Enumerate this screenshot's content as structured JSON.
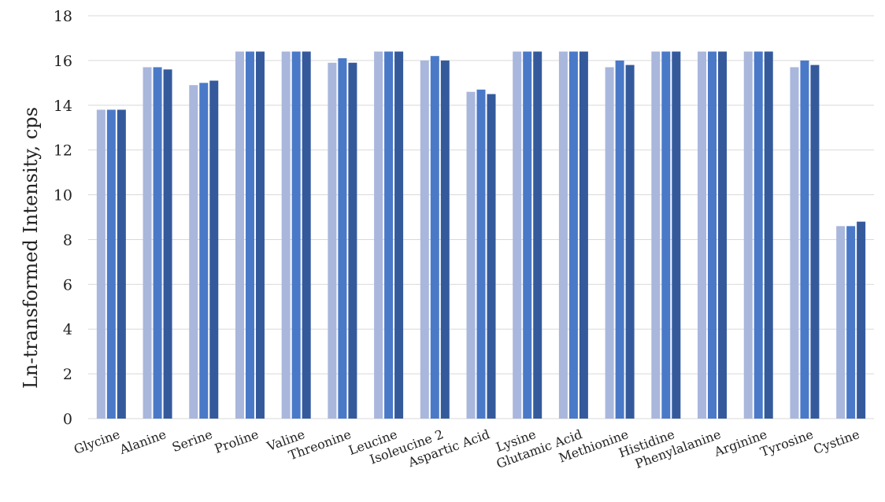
{
  "chart_data": {
    "type": "bar",
    "title": "",
    "xlabel": "",
    "ylabel": "Ln-transformed Intensity, cps",
    "ylim": [
      0,
      18
    ],
    "yticks": [
      0,
      2,
      4,
      6,
      8,
      10,
      12,
      14,
      16,
      18
    ],
    "grid": true,
    "legend": "none",
    "categories": [
      "Glycine",
      "Alanine",
      "Serine",
      "Proline",
      "Valine",
      "Threonine",
      "Leucine",
      "Isoleucine 2",
      "Aspartic Acid",
      "Lysine",
      "Glutamic Acid",
      "Methionine",
      "Histidine",
      "Phenylalanine",
      "Arginine",
      "Tyrosine",
      "Cystine"
    ],
    "series": [
      {
        "color": "#a9b7dc",
        "values": [
          13.8,
          15.7,
          14.9,
          16.4,
          16.4,
          15.9,
          16.4,
          16.0,
          14.6,
          16.4,
          16.4,
          15.7,
          16.4,
          16.4,
          16.4,
          15.7,
          8.6
        ]
      },
      {
        "color": "#4a79c8",
        "values": [
          13.8,
          15.7,
          15.0,
          16.4,
          16.4,
          16.1,
          16.4,
          16.2,
          14.7,
          16.4,
          16.4,
          16.0,
          16.4,
          16.4,
          16.4,
          16.0,
          8.6
        ]
      },
      {
        "color": "#355a9c",
        "values": [
          13.8,
          15.6,
          15.1,
          16.4,
          16.4,
          15.9,
          16.4,
          16.0,
          14.5,
          16.4,
          16.4,
          15.8,
          16.4,
          16.4,
          16.4,
          15.8,
          8.8
        ]
      }
    ]
  }
}
